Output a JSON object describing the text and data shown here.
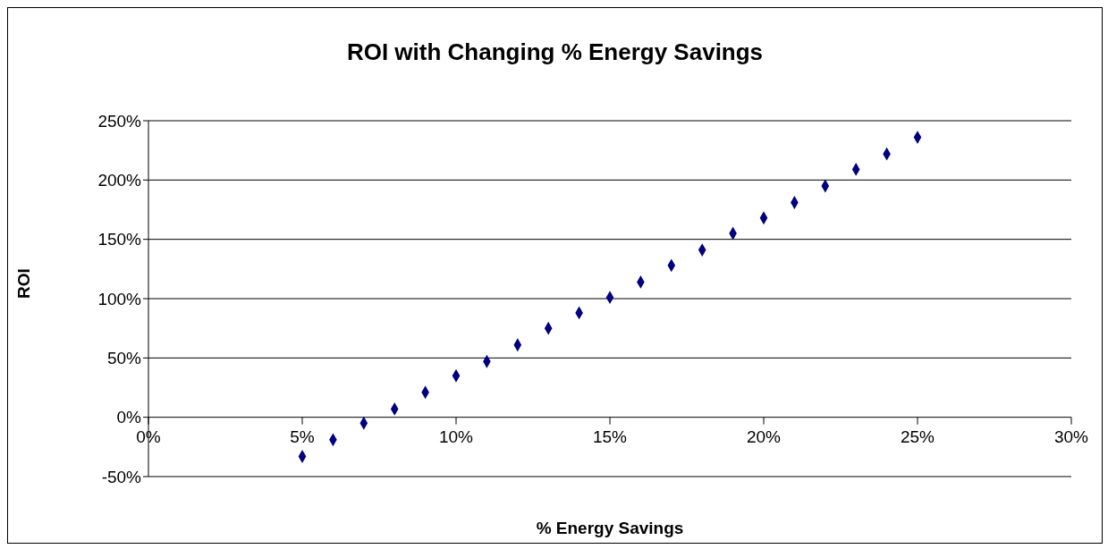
{
  "chart_data": {
    "type": "scatter",
    "title": "ROI with Changing % Energy Savings",
    "xlabel": "% Energy Savings",
    "ylabel": "ROI",
    "x": [
      5,
      6,
      7,
      8,
      9,
      10,
      11,
      12,
      13,
      14,
      15,
      16,
      17,
      18,
      19,
      20,
      21,
      22,
      23,
      24,
      25
    ],
    "values": [
      -33,
      -19,
      -5,
      7,
      21,
      35,
      47,
      61,
      75,
      88,
      101,
      114,
      128,
      141,
      155,
      168,
      181,
      195,
      209,
      222,
      236
    ],
    "color": "#000080",
    "marker": "diamond",
    "grid": "y",
    "legend": false,
    "xlim": [
      0,
      30
    ],
    "xticks": [
      {
        "value": 0,
        "label": "0%"
      },
      {
        "value": 5,
        "label": "5%"
      },
      {
        "value": 10,
        "label": "10%"
      },
      {
        "value": 15,
        "label": "15%"
      },
      {
        "value": 20,
        "label": "20%"
      },
      {
        "value": 25,
        "label": "25%"
      },
      {
        "value": 30,
        "label": "30%"
      }
    ],
    "ylim": [
      -50,
      250
    ],
    "yticks": [
      {
        "value": -50,
        "label": "-50%"
      },
      {
        "value": 0,
        "label": "0%"
      },
      {
        "value": 50,
        "label": "50%"
      },
      {
        "value": 100,
        "label": "100%"
      },
      {
        "value": 150,
        "label": "150%"
      },
      {
        "value": 200,
        "label": "200%"
      },
      {
        "value": 250,
        "label": "250%"
      }
    ]
  }
}
